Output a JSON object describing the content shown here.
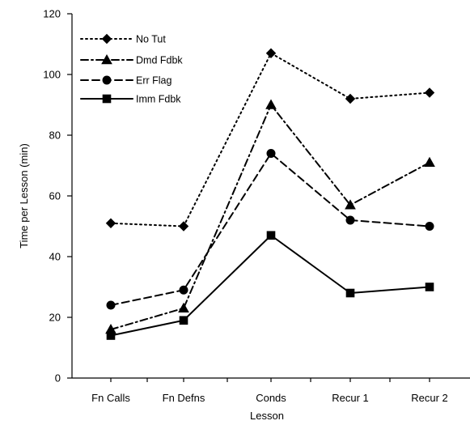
{
  "chart_data": {
    "type": "line",
    "title": "",
    "xlabel": "Lesson",
    "ylabel": "Time per Lesson (min)",
    "ylim": [
      0,
      120
    ],
    "yticks": [
      0,
      20,
      40,
      60,
      80,
      100,
      120
    ],
    "categories": [
      "Fn Calls",
      "Fn Defns",
      "Conds",
      "Recur 1",
      "Recur 2"
    ],
    "grid": false,
    "legend": "top-left",
    "series": [
      {
        "name": "No Tut",
        "values": [
          51,
          50,
          107,
          92,
          94
        ],
        "marker": "diamond",
        "dash": "dotted",
        "color": "#000000"
      },
      {
        "name": "Dmd Fdbk",
        "values": [
          16,
          23,
          90,
          57,
          71
        ],
        "marker": "triangle",
        "dash": "dash-dot",
        "color": "#000000"
      },
      {
        "name": "Err Flag",
        "values": [
          24,
          29,
          74,
          52,
          50
        ],
        "marker": "circle",
        "dash": "dashed",
        "color": "#000000"
      },
      {
        "name": "Imm Fdbk",
        "values": [
          14,
          19,
          47,
          28,
          30
        ],
        "marker": "square",
        "dash": "solid",
        "color": "#000000"
      }
    ]
  }
}
